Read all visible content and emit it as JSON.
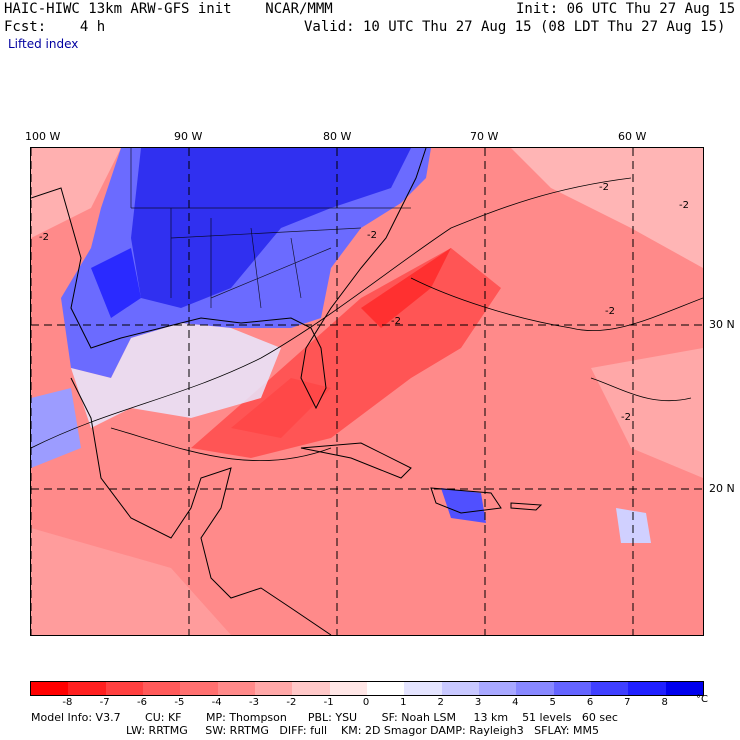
{
  "header": {
    "model_line": "HAIC-HIWC 13km ARW-GFS init    NCAR/MMM",
    "init_line": "Init: 06 UTC Thu 27 Aug 15",
    "fcst_line": "Fcst:    4 h",
    "valid_line": "Valid: 10 UTC Thu 27 Aug 15 (08 LDT Thu 27 Aug 15)",
    "field_name": "Lifted index"
  },
  "map": {
    "lon_labels": [
      "100 W",
      "90 W",
      "80 W",
      "70 W",
      "60 W"
    ],
    "lat_labels": [
      "30 N",
      "20 N"
    ],
    "contour_label": "-2"
  },
  "colorbar": {
    "ticks": [
      "-8",
      "-7",
      "-6",
      "-5",
      "-4",
      "-3",
      "-2",
      "-1",
      "0",
      "1",
      "2",
      "3",
      "4",
      "5",
      "6",
      "7",
      "8"
    ],
    "unit": "°C",
    "colors": [
      "#ff0000",
      "#ff2020",
      "#ff4040",
      "#ff5a5a",
      "#ff7070",
      "#ff8a8a",
      "#ffa8a8",
      "#ffc8c8",
      "#ffe6e6",
      "#ffffff",
      "#e4e4ff",
      "#c8c8ff",
      "#a8a8ff",
      "#8888ff",
      "#6464ff",
      "#4040ff",
      "#2020ff",
      "#0000ee"
    ]
  },
  "info": {
    "line1": "Model Info: V3.7       CU: KF       MP: Thompson      PBL: YSU       SF: Noah LSM     13 km    51 levels   60 sec",
    "line2": "LW: RRTMG     SW: RRTMG   DIFF: full    KM: 2D Smagor DAMP: Rayleigh3   SFLAY: MM5"
  },
  "colors": {
    "header_blue": "#0000a0",
    "positive": "#ff6a6a",
    "negative": "#4040ff"
  }
}
